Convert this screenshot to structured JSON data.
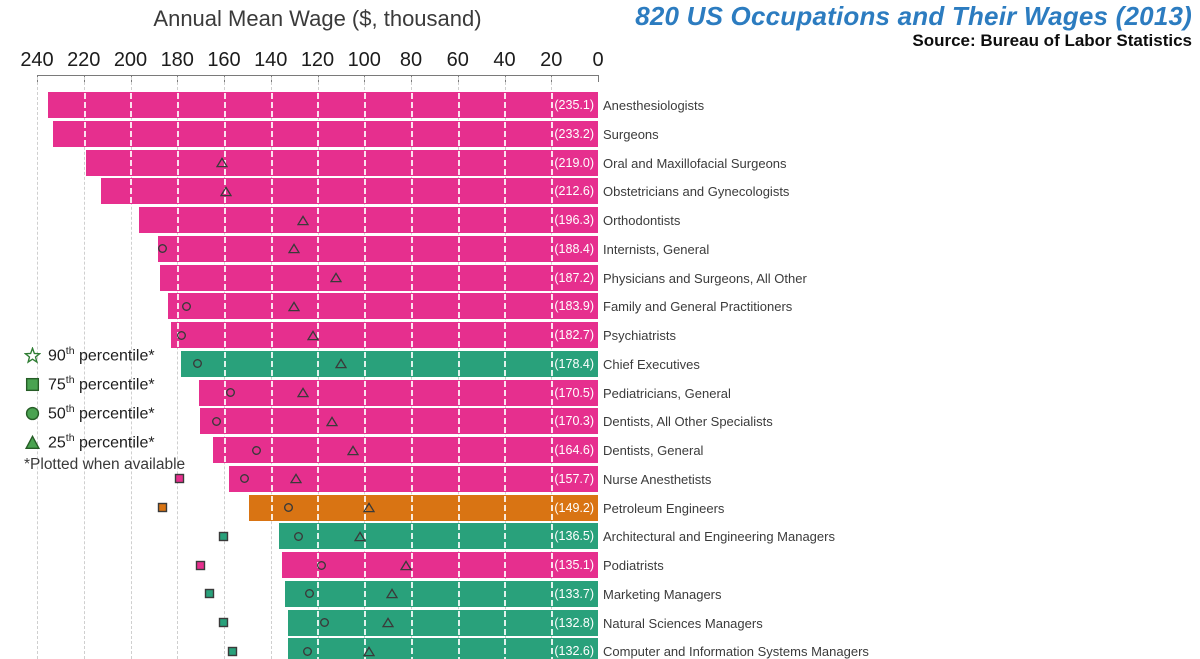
{
  "header": {
    "title": "820 US Occupations and Their Wages (2013)",
    "source": "Source: Bureau of Labor Statistics",
    "title_color": "#2c7cc0"
  },
  "axis": {
    "title": "Annual Mean Wage ($, thousand)",
    "ticks": [
      240,
      220,
      200,
      180,
      160,
      140,
      120,
      100,
      80,
      60,
      40,
      20,
      0
    ]
  },
  "legend": {
    "items": [
      {
        "marker": "star",
        "num": "90",
        "sup": "th",
        "rest": " percentile*"
      },
      {
        "marker": "square",
        "num": "75",
        "sup": "th",
        "rest": " percentile*"
      },
      {
        "marker": "circle",
        "num": "50",
        "sup": "th",
        "rest": " percentile*"
      },
      {
        "marker": "triangle",
        "num": "25",
        "sup": "th",
        "rest": " percentile*"
      }
    ],
    "footnote": "*Plotted when available"
  },
  "colors": {
    "pink": "#e62f8e",
    "green": "#29a17b",
    "orange": "#d97413",
    "legend_green": "#4aa351",
    "legend_edge": "#265c26",
    "marker_edge": "#3a3a3a",
    "grid": "#cfcfcf",
    "grid_on_bar": "#ffffff"
  },
  "chart_data": {
    "type": "bar",
    "orientation": "horizontal",
    "title": "820 US Occupations and Their Wages (2013)",
    "xlabel": "Annual Mean Wage ($, thousand)",
    "xlim": [
      240,
      0
    ],
    "grid": true,
    "value_label_format": "(mean)",
    "percentile_marker_types": {
      "p90": "star",
      "p75": "square",
      "p50": "circle",
      "p25": "triangle"
    },
    "bars": [
      {
        "label": "Anesthesiologists",
        "mean": 235.1,
        "color": "pink",
        "percentiles": {}
      },
      {
        "label": "Surgeons",
        "mean": 233.2,
        "color": "pink",
        "percentiles": {}
      },
      {
        "label": "Oral and Maxillofacial Surgeons",
        "mean": 219.0,
        "color": "pink",
        "percentiles": {
          "p25": 161
        }
      },
      {
        "label": "Obstetricians and Gynecologists",
        "mean": 212.6,
        "color": "pink",
        "percentiles": {
          "p25": 159
        }
      },
      {
        "label": "Orthodontists",
        "mean": 196.3,
        "color": "pink",
        "percentiles": {
          "p25": 126
        }
      },
      {
        "label": "Internists, General",
        "mean": 188.4,
        "color": "pink",
        "percentiles": {
          "p50": 186,
          "p25": 130
        }
      },
      {
        "label": "Physicians and Surgeons, All Other",
        "mean": 187.2,
        "color": "pink",
        "percentiles": {
          "p25": 112
        }
      },
      {
        "label": "Family and General Practitioners",
        "mean": 183.9,
        "color": "pink",
        "percentiles": {
          "p50": 176,
          "p25": 130
        }
      },
      {
        "label": "Psychiatrists",
        "mean": 182.7,
        "color": "pink",
        "percentiles": {
          "p50": 178,
          "p25": 122
        }
      },
      {
        "label": "Chief Executives",
        "mean": 178.4,
        "color": "green",
        "percentiles": {
          "p50": 171,
          "p25": 110
        }
      },
      {
        "label": "Pediatricians, General",
        "mean": 170.5,
        "color": "pink",
        "percentiles": {
          "p50": 157,
          "p25": 126
        }
      },
      {
        "label": "Dentists, All Other Specialists",
        "mean": 170.3,
        "color": "pink",
        "percentiles": {
          "p50": 163,
          "p25": 114
        }
      },
      {
        "label": "Dentists, General",
        "mean": 164.6,
        "color": "pink",
        "percentiles": {
          "p50": 146,
          "p25": 105
        }
      },
      {
        "label": "Nurse Anesthetists",
        "mean": 157.7,
        "color": "pink",
        "percentiles": {
          "p75": 179,
          "p50": 151,
          "p25": 129
        }
      },
      {
        "label": "Petroleum Engineers",
        "mean": 149.2,
        "color": "orange",
        "percentiles": {
          "p75": 186,
          "p50": 132,
          "p25": 98
        }
      },
      {
        "label": "Architectural and Engineering Managers",
        "mean": 136.5,
        "color": "green",
        "percentiles": {
          "p75": 160,
          "p50": 128,
          "p25": 102
        }
      },
      {
        "label": "Podiatrists",
        "mean": 135.1,
        "color": "pink",
        "percentiles": {
          "p75": 170,
          "p50": 118,
          "p25": 82
        }
      },
      {
        "label": "Marketing Managers",
        "mean": 133.7,
        "color": "green",
        "percentiles": {
          "p75": 166,
          "p50": 123,
          "p25": 88
        }
      },
      {
        "label": "Natural Sciences Managers",
        "mean": 132.8,
        "color": "green",
        "percentiles": {
          "p75": 160,
          "p50": 117,
          "p25": 90
        }
      },
      {
        "label": "Computer and Information Systems Managers",
        "mean": 132.6,
        "color": "green",
        "percentiles": {
          "p75": 156,
          "p50": 124,
          "p25": 98
        }
      }
    ]
  }
}
